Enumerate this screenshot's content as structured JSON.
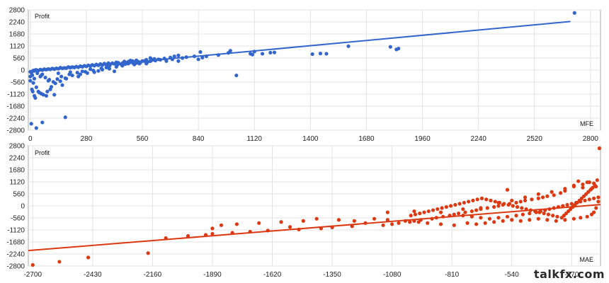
{
  "watermark": "talkfx.com",
  "chart_data": [
    {
      "type": "scatter",
      "color": "#3366cc",
      "ylabel": "Profit",
      "xlabel": "MFE",
      "xlim": [
        -10,
        2850
      ],
      "ylim": [
        -2800,
        2800
      ],
      "x_ticks": [
        0,
        280,
        560,
        840,
        1120,
        1400,
        1680,
        1960,
        2240,
        2520,
        2800
      ],
      "y_ticks": [
        2800,
        2240,
        1680,
        1120,
        560,
        0,
        -560,
        -1120,
        -1680,
        -2240,
        -2800
      ],
      "trendline": [
        [
          0,
          -80
        ],
        [
          2700,
          2260
        ]
      ],
      "points": [
        [
          2720,
          2660
        ],
        [
          1840,
          1000
        ],
        [
          1590,
          1110
        ],
        [
          1800,
          1080
        ],
        [
          1830,
          960
        ],
        [
          1480,
          760
        ],
        [
          1450,
          770
        ],
        [
          1410,
          740
        ],
        [
          1220,
          820
        ],
        [
          1200,
          810
        ],
        [
          1160,
          760
        ],
        [
          1120,
          860
        ],
        [
          1110,
          720
        ],
        [
          1100,
          760
        ],
        [
          1000,
          900
        ],
        [
          990,
          800
        ],
        [
          940,
          700
        ],
        [
          880,
          640
        ],
        [
          860,
          580
        ],
        [
          850,
          840
        ],
        [
          820,
          640
        ],
        [
          780,
          600
        ],
        [
          740,
          680
        ],
        [
          720,
          640
        ],
        [
          700,
          580
        ],
        [
          670,
          540
        ],
        [
          640,
          500
        ],
        [
          610,
          470
        ],
        [
          1030,
          -250
        ],
        [
          740,
          420
        ],
        [
          840,
          500
        ],
        [
          560,
          420
        ],
        [
          540,
          390
        ],
        [
          520,
          380
        ],
        [
          500,
          360
        ],
        [
          480,
          340
        ],
        [
          460,
          320
        ],
        [
          440,
          300
        ],
        [
          420,
          290
        ],
        [
          400,
          270
        ],
        [
          380,
          250
        ],
        [
          360,
          230
        ],
        [
          340,
          220
        ],
        [
          320,
          200
        ],
        [
          300,
          190
        ],
        [
          280,
          170
        ],
        [
          260,
          150
        ],
        [
          240,
          130
        ],
        [
          220,
          120
        ],
        [
          200,
          110
        ],
        [
          180,
          90
        ],
        [
          160,
          80
        ],
        [
          140,
          60
        ],
        [
          120,
          40
        ],
        [
          100,
          30
        ],
        [
          80,
          20
        ],
        [
          60,
          0
        ],
        [
          40,
          -20
        ],
        [
          20,
          -40
        ],
        [
          10,
          -60
        ],
        [
          0,
          -80
        ],
        [
          580,
          480
        ],
        [
          600,
          560
        ],
        [
          620,
          520
        ],
        [
          500,
          440
        ],
        [
          470,
          400
        ],
        [
          430,
          360
        ],
        [
          390,
          320
        ],
        [
          350,
          280
        ],
        [
          310,
          240
        ],
        [
          270,
          200
        ],
        [
          230,
          160
        ],
        [
          190,
          140
        ],
        [
          150,
          110
        ],
        [
          110,
          70
        ],
        [
          70,
          40
        ],
        [
          30,
          10
        ],
        [
          5,
          -120
        ],
        [
          10,
          -240
        ],
        [
          20,
          -400
        ],
        [
          15,
          -600
        ],
        [
          30,
          -800
        ],
        [
          40,
          -1000
        ],
        [
          55,
          -1100
        ],
        [
          80,
          -1200
        ],
        [
          20,
          -1200
        ],
        [
          100,
          -900
        ],
        [
          160,
          -700
        ],
        [
          240,
          -300
        ],
        [
          180,
          -400
        ],
        [
          5,
          -2500
        ],
        [
          30,
          -2700
        ],
        [
          60,
          -2440
        ],
        [
          175,
          -2200
        ],
        [
          120,
          -1150
        ],
        [
          90,
          -500
        ],
        [
          50,
          -300
        ],
        [
          200,
          -100
        ],
        [
          300,
          40
        ],
        [
          380,
          120
        ],
        [
          460,
          200
        ],
        [
          520,
          260
        ],
        [
          580,
          300
        ],
        [
          420,
          -60
        ],
        [
          340,
          -40
        ],
        [
          260,
          -60
        ],
        [
          140,
          -150
        ],
        [
          60,
          -200
        ],
        [
          0,
          -300
        ],
        [
          0,
          -500
        ],
        [
          8,
          -900
        ],
        [
          12,
          -1000
        ],
        [
          25,
          -1300
        ],
        [
          45,
          -1050
        ],
        [
          65,
          -1150
        ],
        [
          85,
          -1000
        ],
        [
          105,
          -780
        ],
        [
          125,
          -620
        ],
        [
          150,
          -520
        ],
        [
          175,
          -380
        ],
        [
          210,
          -250
        ],
        [
          250,
          -200
        ],
        [
          285,
          -140
        ],
        [
          320,
          -100
        ],
        [
          360,
          20
        ],
        [
          395,
          60
        ],
        [
          430,
          150
        ],
        [
          455,
          260
        ],
        [
          490,
          300
        ],
        [
          530,
          330
        ],
        [
          550,
          350
        ],
        [
          570,
          420
        ],
        [
          600,
          410
        ],
        [
          530,
          450
        ],
        [
          510,
          420
        ],
        [
          490,
          390
        ],
        [
          440,
          340
        ],
        [
          410,
          320
        ],
        [
          370,
          300
        ],
        [
          330,
          260
        ],
        [
          290,
          220
        ],
        [
          250,
          180
        ],
        [
          210,
          140
        ],
        [
          170,
          100
        ],
        [
          130,
          80
        ],
        [
          90,
          50
        ],
        [
          50,
          20
        ],
        [
          25,
          0
        ],
        [
          15,
          -20
        ],
        [
          35,
          -150
        ],
        [
          55,
          -250
        ],
        [
          75,
          -350
        ],
        [
          95,
          -450
        ],
        [
          115,
          -550
        ],
        [
          135,
          -420
        ],
        [
          155,
          -300
        ],
        [
          195,
          -200
        ],
        [
          235,
          -120
        ],
        [
          275,
          -80
        ],
        [
          315,
          -20
        ],
        [
          355,
          80
        ],
        [
          395,
          180
        ],
        [
          435,
          240
        ],
        [
          475,
          280
        ],
        [
          515,
          310
        ],
        [
          545,
          300
        ],
        [
          585,
          360
        ],
        [
          625,
          440
        ],
        [
          650,
          480
        ],
        [
          680,
          420
        ],
        [
          710,
          500
        ],
        [
          760,
          560
        ]
      ]
    },
    {
      "type": "scatter",
      "color": "#dc3912",
      "ylabel": "Profit",
      "xlabel": "MAE",
      "xlim": [
        -2720,
        -140
      ],
      "ylim": [
        -2800,
        2800
      ],
      "x_ticks": [
        -2700,
        -2430,
        -2160,
        -1890,
        -1620,
        -1350,
        -1080,
        -810,
        -540,
        -270
      ],
      "y_ticks": [
        2800,
        2240,
        1680,
        1120,
        560,
        0,
        -560,
        -1120,
        -1680,
        -2240,
        -2800
      ],
      "trendline": [
        [
          -2720,
          -2080
        ],
        [
          -140,
          60
        ]
      ],
      "points": [
        [
          -145,
          2680
        ],
        [
          -240,
          1150
        ],
        [
          -200,
          1100
        ],
        [
          -170,
          1050
        ],
        [
          -160,
          900
        ],
        [
          -180,
          800
        ],
        [
          -220,
          850
        ],
        [
          -260,
          950
        ],
        [
          -300,
          700
        ],
        [
          -320,
          600
        ],
        [
          -350,
          500
        ],
        [
          -380,
          450
        ],
        [
          -400,
          400
        ],
        [
          -420,
          350
        ],
        [
          -450,
          300
        ],
        [
          -480,
          250
        ],
        [
          -500,
          200
        ],
        [
          -520,
          150
        ],
        [
          -550,
          100
        ],
        [
          -560,
          750
        ],
        [
          -580,
          50
        ],
        [
          -600,
          0
        ],
        [
          -620,
          -50
        ],
        [
          -650,
          -100
        ],
        [
          -680,
          -150
        ],
        [
          -700,
          -200
        ],
        [
          -720,
          -250
        ],
        [
          -750,
          -300
        ],
        [
          -780,
          -350
        ],
        [
          -800,
          -400
        ],
        [
          -820,
          -450
        ],
        [
          -850,
          -500
        ],
        [
          -880,
          -550
        ],
        [
          -900,
          -600
        ],
        [
          -950,
          -650
        ],
        [
          -980,
          -700
        ],
        [
          -1000,
          -750
        ],
        [
          -1050,
          -800
        ],
        [
          -1080,
          -850
        ],
        [
          -1120,
          -900
        ],
        [
          -1200,
          -800
        ],
        [
          -1260,
          -950
        ],
        [
          -1350,
          -1000
        ],
        [
          -1400,
          -1050
        ],
        [
          -1500,
          -1100
        ],
        [
          -1540,
          -980
        ],
        [
          -1640,
          -1150
        ],
        [
          -1720,
          -1200
        ],
        [
          -1800,
          -1250
        ],
        [
          -1890,
          -1050
        ],
        [
          -1890,
          -1300
        ],
        [
          -1920,
          -1350
        ],
        [
          -2000,
          -1400
        ],
        [
          -2100,
          -1500
        ],
        [
          -2180,
          -2200
        ],
        [
          -2450,
          -2400
        ],
        [
          -2580,
          -2600
        ],
        [
          -2700,
          -2750
        ],
        [
          -150,
          400
        ],
        [
          -170,
          350
        ],
        [
          -190,
          300
        ],
        [
          -210,
          250
        ],
        [
          -230,
          200
        ],
        [
          -250,
          150
        ],
        [
          -270,
          100
        ],
        [
          -290,
          50
        ],
        [
          -310,
          0
        ],
        [
          -330,
          -50
        ],
        [
          -350,
          -100
        ],
        [
          -370,
          -150
        ],
        [
          -390,
          -200
        ],
        [
          -410,
          -250
        ],
        [
          -430,
          -300
        ],
        [
          -460,
          -350
        ],
        [
          -490,
          -400
        ],
        [
          -520,
          -450
        ],
        [
          -560,
          -500
        ],
        [
          -600,
          -550
        ],
        [
          -640,
          -600
        ],
        [
          -680,
          -550
        ],
        [
          -720,
          -500
        ],
        [
          -760,
          -450
        ],
        [
          -150,
          200
        ],
        [
          -160,
          -100
        ],
        [
          -170,
          -300
        ],
        [
          -180,
          -400
        ],
        [
          -200,
          -500
        ],
        [
          -230,
          -550
        ],
        [
          -260,
          -600
        ],
        [
          -300,
          -650
        ],
        [
          -340,
          -700
        ],
        [
          -380,
          -650
        ],
        [
          -420,
          -600
        ],
        [
          -460,
          -650
        ],
        [
          -500,
          -700
        ],
        [
          -540,
          -650
        ],
        [
          -580,
          -700
        ],
        [
          -620,
          -750
        ],
        [
          -660,
          -800
        ],
        [
          -700,
          -850
        ],
        [
          -740,
          -800
        ],
        [
          -800,
          -900
        ],
        [
          -860,
          -850
        ],
        [
          -920,
          -800
        ],
        [
          -960,
          -750
        ],
        [
          -1020,
          -700
        ],
        [
          -1100,
          -650
        ],
        [
          -1160,
          -600
        ],
        [
          -1250,
          -700
        ],
        [
          -1320,
          -650
        ],
        [
          -1420,
          -600
        ],
        [
          -1480,
          -700
        ],
        [
          -1580,
          -750
        ],
        [
          -1680,
          -800
        ],
        [
          -1780,
          -850
        ],
        [
          -1850,
          -900
        ],
        [
          -1100,
          -300
        ],
        [
          -980,
          -250
        ],
        [
          -860,
          -300
        ],
        [
          -760,
          -150
        ],
        [
          -680,
          -100
        ],
        [
          -600,
          150
        ],
        [
          -540,
          250
        ],
        [
          -480,
          400
        ],
        [
          -420,
          550
        ],
        [
          -360,
          650
        ],
        [
          -300,
          800
        ],
        [
          -260,
          900
        ],
        [
          -220,
          1000
        ],
        [
          -190,
          1100
        ],
        [
          -155,
          1200
        ],
        [
          -165,
          950
        ],
        [
          -175,
          850
        ],
        [
          -185,
          750
        ],
        [
          -195,
          650
        ],
        [
          -205,
          550
        ],
        [
          -215,
          450
        ],
        [
          -225,
          350
        ],
        [
          -235,
          250
        ],
        [
          -245,
          150
        ],
        [
          -255,
          50
        ],
        [
          -265,
          -50
        ],
        [
          -275,
          -150
        ],
        [
          -285,
          -250
        ],
        [
          -295,
          -350
        ],
        [
          -305,
          -450
        ],
        [
          -315,
          -550
        ],
        [
          -335,
          -500
        ],
        [
          -355,
          -450
        ],
        [
          -375,
          -400
        ],
        [
          -395,
          -350
        ],
        [
          -415,
          -300
        ],
        [
          -435,
          -250
        ],
        [
          -455,
          -200
        ],
        [
          -475,
          -150
        ],
        [
          -495,
          -100
        ],
        [
          -515,
          -50
        ],
        [
          -535,
          0
        ],
        [
          -555,
          50
        ],
        [
          -575,
          100
        ],
        [
          -595,
          150
        ],
        [
          -615,
          200
        ],
        [
          -635,
          250
        ],
        [
          -655,
          300
        ],
        [
          -675,
          350
        ],
        [
          -695,
          300
        ],
        [
          -715,
          250
        ],
        [
          -735,
          200
        ],
        [
          -755,
          150
        ],
        [
          -775,
          100
        ],
        [
          -795,
          50
        ],
        [
          -815,
          0
        ],
        [
          -835,
          -50
        ],
        [
          -855,
          -100
        ],
        [
          -875,
          -150
        ],
        [
          -895,
          -200
        ],
        [
          -915,
          -250
        ],
        [
          -935,
          -300
        ],
        [
          -955,
          -350
        ],
        [
          -975,
          -400
        ],
        [
          -995,
          -450
        ]
      ]
    }
  ]
}
